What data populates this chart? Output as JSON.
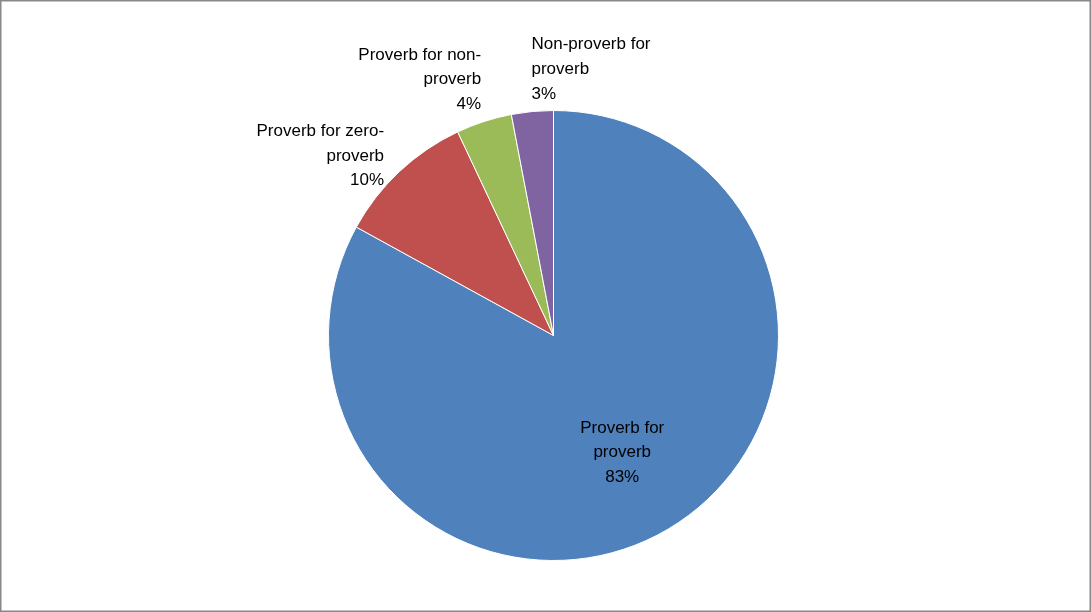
{
  "chart_data": {
    "type": "pie",
    "categories": [
      "Proverb for proverb",
      "Proverb for zero-proverb",
      "Proverb for non-proverb",
      "Non-proverb for proverb"
    ],
    "values": [
      83,
      10,
      4,
      3
    ],
    "colors": [
      "#4f81bd",
      "#c0504d",
      "#9bbb59",
      "#8064a2"
    ],
    "value_labels": [
      "83%",
      "10%",
      "4%",
      "3%"
    ]
  }
}
